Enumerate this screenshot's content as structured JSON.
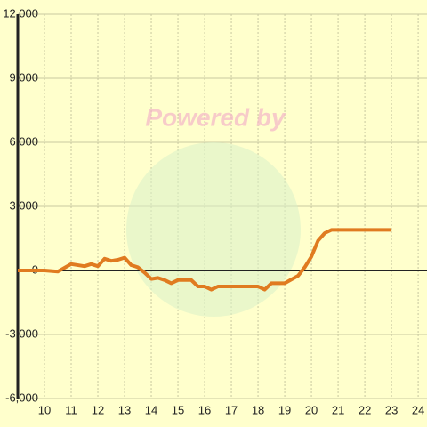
{
  "chart_data": {
    "type": "line",
    "watermark": "Powered by",
    "x": [
      9,
      10,
      10.5,
      11,
      11.5,
      11.75,
      12,
      12.25,
      12.5,
      12.75,
      13,
      13.25,
      13.5,
      13.75,
      14,
      14.25,
      14.5,
      14.75,
      15,
      15.5,
      15.75,
      16,
      16.25,
      16.5,
      18,
      18.25,
      18.5,
      19,
      19.5,
      19.75,
      20,
      20.25,
      20.5,
      20.75,
      23
    ],
    "series": [
      {
        "color": "#e07b20",
        "values": [
          0,
          0,
          -50,
          300,
          200,
          300,
          200,
          550,
          450,
          500,
          600,
          250,
          150,
          -100,
          -400,
          -350,
          -450,
          -600,
          -450,
          -450,
          -750,
          -750,
          -900,
          -750,
          -750,
          -900,
          -600,
          -600,
          -250,
          150,
          650,
          1400,
          1750,
          1900,
          1900
        ]
      }
    ],
    "xlim": [
      9,
      24.33
    ],
    "xticks": [
      10,
      11,
      12,
      13,
      14,
      15,
      16,
      17,
      18,
      19,
      20,
      21,
      22,
      23,
      24
    ],
    "ylim": [
      -6000,
      12000
    ],
    "yticks": [
      {
        "value": -6000,
        "label": "-6,000"
      },
      {
        "value": -3000,
        "label": "-3,000"
      },
      0,
      {
        "value": 3000,
        "label": "3,000"
      },
      {
        "value": 6000,
        "label": "6,000"
      },
      {
        "value": 9000,
        "label": "9,000"
      },
      {
        "value": 12000,
        "label": "12,000"
      }
    ],
    "grid": true
  }
}
